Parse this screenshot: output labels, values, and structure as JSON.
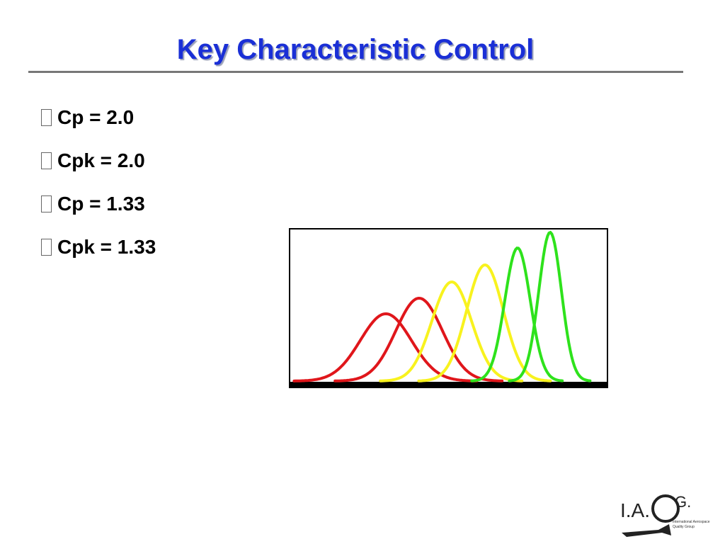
{
  "slide": {
    "title": "Key Characteristic Control",
    "bullets": [
      "Cp = 2.0",
      "Cpk = 2.0",
      "Cp = 1.33",
      "Cpk = 1.33"
    ],
    "logo": {
      "parts": [
        "I.A.",
        "Q",
        "G."
      ],
      "caption": [
        "International Aerospace",
        "Quality Group"
      ]
    }
  }
}
